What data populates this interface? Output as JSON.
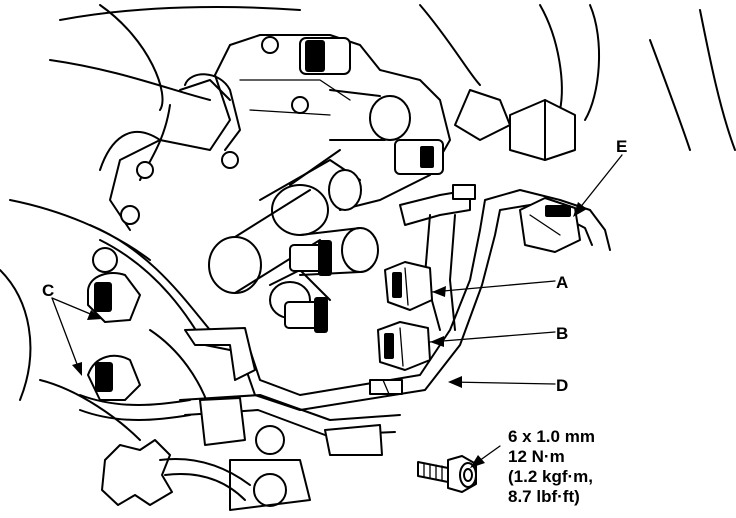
{
  "callouts": {
    "a": "A",
    "b": "B",
    "c": "C",
    "d": "D",
    "e": "E"
  },
  "bolt_spec": {
    "size": "6 x 1.0 mm",
    "torque_nm": "12 N·m",
    "torque_kgfm": "(1.2 kgf·m,",
    "torque_lbfft": "8.7 lbf·ft)"
  }
}
